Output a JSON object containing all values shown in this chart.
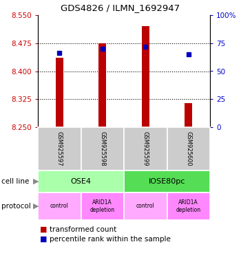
{
  "title": "GDS4826 / ILMN_1692947",
  "samples": [
    "GSM925597",
    "GSM925598",
    "GSM925599",
    "GSM925600"
  ],
  "bar_values": [
    8.435,
    8.475,
    8.52,
    8.315
  ],
  "percentile_values": [
    66,
    70,
    72,
    65
  ],
  "y_min": 8.25,
  "y_max": 8.55,
  "y_ticks": [
    8.25,
    8.325,
    8.4,
    8.475,
    8.55
  ],
  "y2_ticks": [
    0,
    25,
    50,
    75,
    100
  ],
  "bar_color": "#bb0000",
  "dot_color": "#0000bb",
  "sample_bg": "#cccccc",
  "cell_line_ose4_color": "#aaffaa",
  "cell_line_iose_color": "#55dd55",
  "protocol_control_color": "#ffaaff",
  "protocol_arid_color": "#ff88ff",
  "left_label_color": "#cc0000",
  "right_label_color": "#0000cc"
}
